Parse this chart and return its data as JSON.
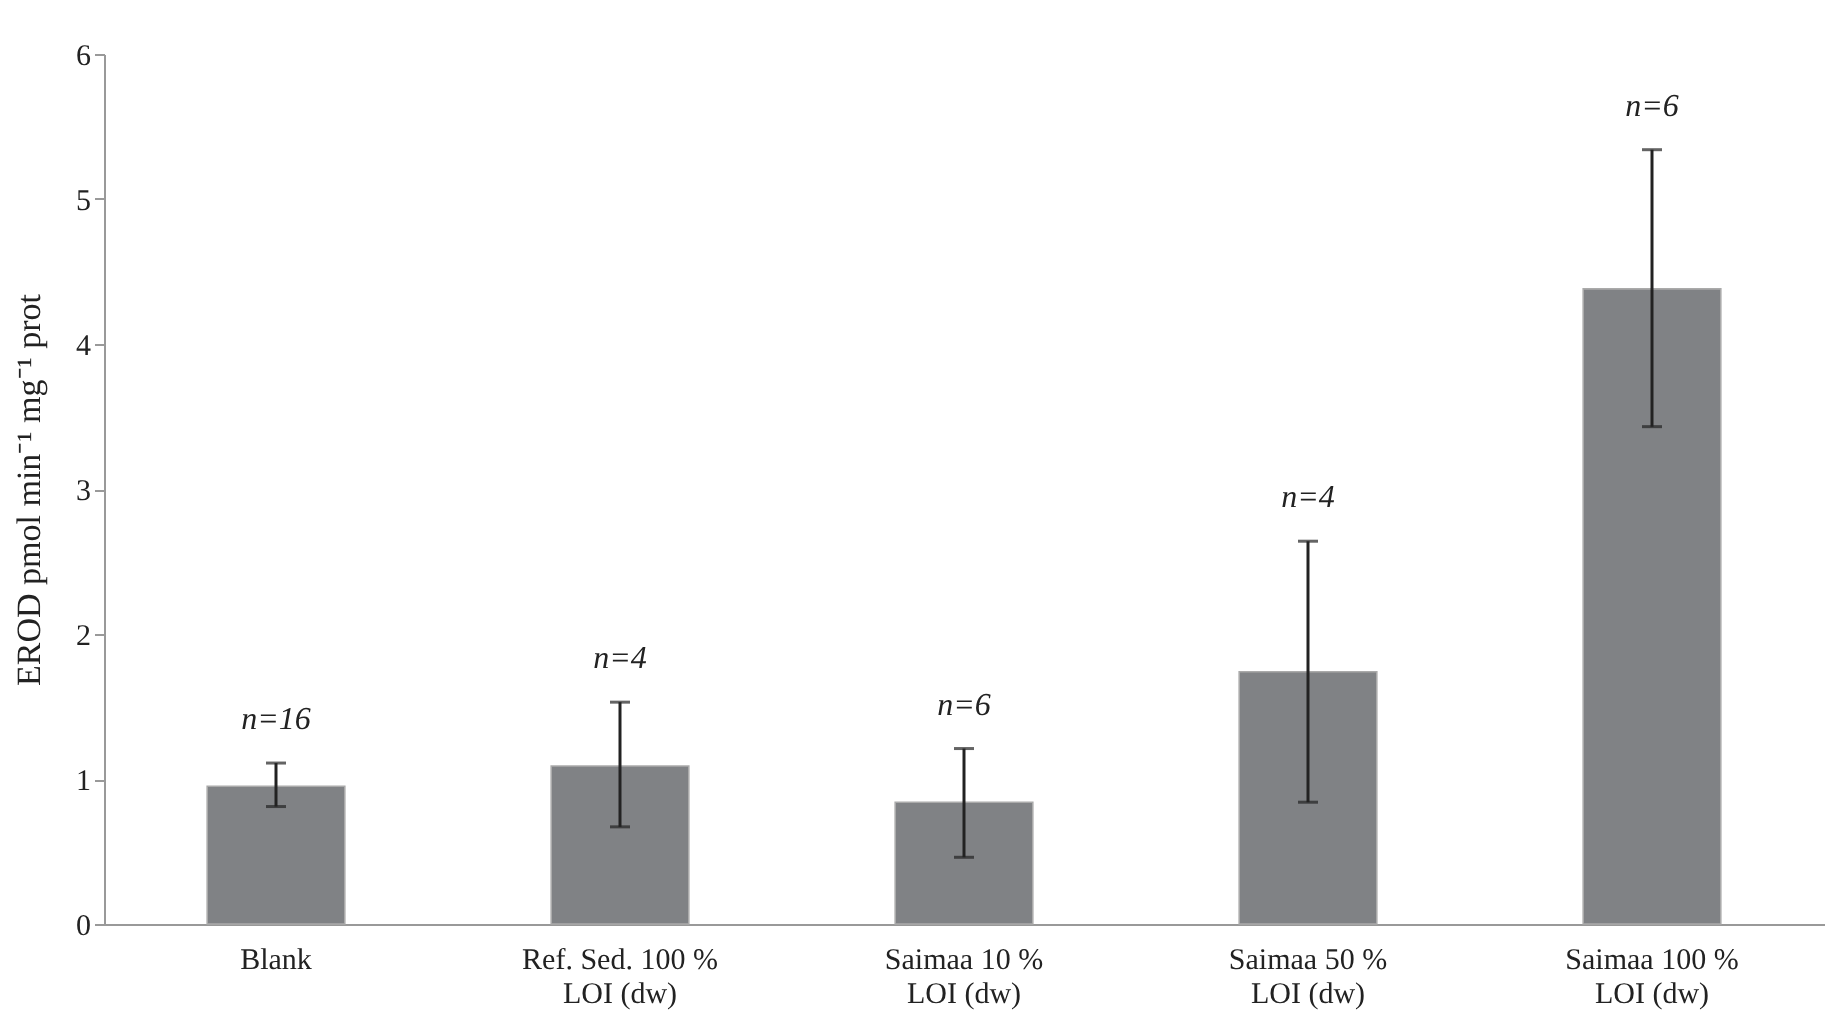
{
  "chart_data": {
    "type": "bar",
    "ylabel": "EROD pmol min⁻¹ mg⁻¹ prot",
    "categories": [
      "Blank",
      "Ref. Sed. 100 %\nLOI (dw)",
      "Saimaa 10 %\nLOI (dw)",
      "Saimaa 50 %\nLOI (dw)",
      "Saimaa 100 %\nLOI (dw)"
    ],
    "values": [
      0.95,
      1.09,
      0.84,
      1.74,
      4.38
    ],
    "errors": [
      [
        0.81,
        1.11
      ],
      [
        0.67,
        1.53
      ],
      [
        0.46,
        1.21
      ],
      [
        0.84,
        2.64
      ],
      [
        3.43,
        5.34
      ]
    ],
    "color": "#808285",
    "ylim": [
      0,
      6
    ],
    "yticks": [
      0,
      1,
      2,
      3,
      4,
      5,
      6
    ],
    "grid": false,
    "annotations": [
      "n=16",
      "n=4",
      "n=6",
      "n=4",
      "n=6"
    ]
  }
}
